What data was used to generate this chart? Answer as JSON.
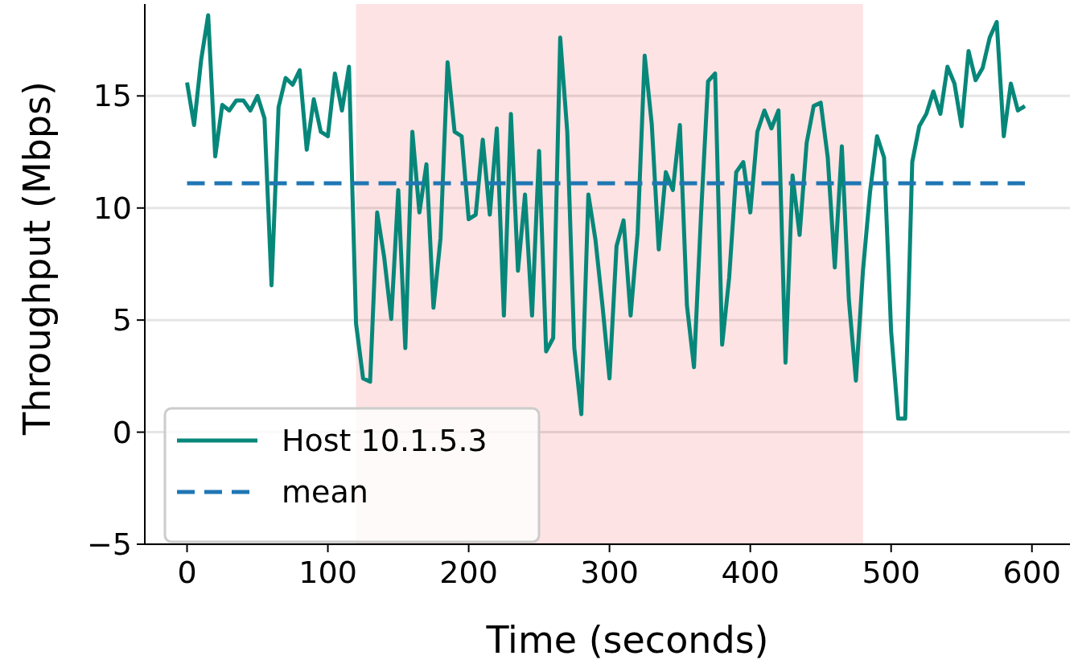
{
  "chart_data": {
    "type": "line",
    "xlabel": "Time (seconds)",
    "ylabel": "Throughput (Mbps)",
    "xlim": [
      -30,
      627
    ],
    "xticks": [
      0,
      100,
      200,
      300,
      400,
      500,
      600
    ],
    "ylim": [
      -5,
      19.1
    ],
    "yticks": [
      -5,
      0,
      5,
      10,
      15
    ],
    "grid": "y",
    "legend": "bottom left",
    "bands": [
      {
        "axis": "x",
        "from": 120,
        "to": 480,
        "color": "#fde3e3"
      }
    ],
    "x": [
      0,
      5,
      10,
      15,
      20,
      25,
      30,
      35,
      40,
      45,
      50,
      55,
      60,
      65,
      70,
      75,
      80,
      85,
      90,
      95,
      100,
      105,
      110,
      115,
      120,
      125,
      130,
      135,
      140,
      145,
      150,
      155,
      160,
      165,
      170,
      175,
      180,
      185,
      190,
      195,
      200,
      205,
      210,
      215,
      220,
      225,
      230,
      235,
      240,
      245,
      250,
      255,
      260,
      265,
      270,
      275,
      280,
      285,
      290,
      295,
      300,
      305,
      310,
      315,
      320,
      325,
      330,
      335,
      340,
      345,
      350,
      355,
      360,
      365,
      370,
      375,
      380,
      385,
      390,
      395,
      400,
      405,
      410,
      415,
      420,
      425,
      430,
      435,
      440,
      445,
      450,
      455,
      460,
      465,
      470,
      475,
      480,
      485,
      490,
      495,
      500,
      505,
      510,
      515,
      520,
      525,
      530,
      535,
      540,
      545,
      550,
      555,
      560,
      565,
      570,
      575,
      580,
      585,
      590,
      595
    ],
    "series": [
      {
        "name": "Host 10.1.5.3",
        "color": "#07877a",
        "line_style": "solid",
        "values": [
          15.6,
          13.7,
          16.6,
          18.6,
          12.3,
          14.6,
          14.35,
          14.8,
          14.8,
          14.35,
          15,
          14,
          6.55,
          14.5,
          15.8,
          15.5,
          16.15,
          12.6,
          14.85,
          13.4,
          13.2,
          16,
          14.35,
          16.3,
          4.85,
          2.4,
          2.25,
          9.8,
          7.8,
          5.05,
          10.8,
          3.75,
          13.4,
          9.8,
          11.95,
          5.55,
          8.65,
          16.5,
          13.4,
          13.2,
          9.5,
          9.7,
          13.05,
          9.7,
          13.55,
          5.2,
          14.2,
          7.2,
          10.6,
          5.2,
          12.55,
          3.6,
          4.2,
          17.6,
          13.4,
          3.75,
          0.8,
          10.6,
          8.6,
          5.65,
          2.4,
          8.3,
          9.45,
          5.2,
          8.9,
          16.8,
          13.75,
          8.15,
          11.6,
          10.8,
          13.7,
          5.65,
          2.9,
          9.7,
          15.65,
          16,
          3.9,
          6.9,
          11.6,
          12.05,
          9.8,
          13.4,
          14.35,
          13.55,
          14.35,
          3.1,
          11.45,
          8.8,
          12.9,
          14.55,
          14.7,
          12.25,
          7.35,
          12.75,
          5.9,
          2.3,
          7.2,
          10.7,
          13.2,
          12.25,
          4.5,
          0.6,
          0.6,
          12.05,
          13.65,
          14.2,
          15.2,
          14.2,
          16.3,
          15.55,
          13.65,
          17,
          15.7,
          16.25,
          17.6,
          18.3,
          13.2,
          15.55,
          14.35,
          14.55
        ]
      },
      {
        "name": "mean",
        "color": "#1f77b4",
        "line_style": "dashed",
        "x": [
          0,
          595
        ],
        "values": [
          11.1,
          11.1
        ]
      }
    ]
  }
}
